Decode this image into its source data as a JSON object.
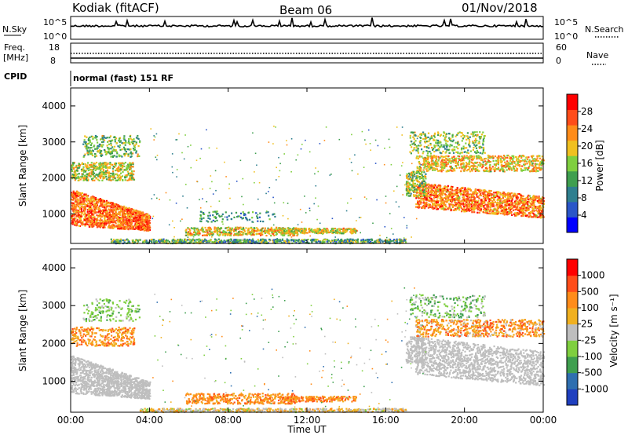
{
  "header": {
    "station": "Kodiak (fitACF)",
    "beam": "Beam 06",
    "date": "01/Nov/2018"
  },
  "strip_panels": {
    "nsky_label": "N.Sky",
    "nsearch_label": "N.Search",
    "nsky_ticks": [
      "10^5",
      "10^0"
    ],
    "nsky_right_ticks": [
      "10^5",
      "10^0"
    ],
    "freq_label_1": "Freq.",
    "freq_label_2": "[MHz]",
    "freq_ticks": [
      "18",
      "8"
    ],
    "nave_label": "Nave",
    "nave_ticks": [
      "60",
      "0"
    ],
    "cpid_label": "CPID",
    "cpid_text": "normal (fast) 151 RF"
  },
  "chart_data": [
    {
      "type": "heatmap",
      "panel": "power",
      "ylabel": "Slant Range [km]",
      "xlabel": "",
      "ylim": [
        180,
        4500
      ],
      "yticks": [
        1000,
        2000,
        3000,
        4000
      ],
      "xlim": [
        "00:00",
        "24:00"
      ],
      "colorbar": {
        "label": "Power [dB]",
        "ticks": [
          "28",
          "24",
          "20",
          "16",
          "12",
          "8",
          "4"
        ],
        "colors": [
          "#0000ff",
          "#2a56c8",
          "#2f7f8f",
          "#3f9f4f",
          "#7fcf3f",
          "#f0c020",
          "#ff8c1a",
          "#ff4d1a",
          "#ff0000"
        ]
      }
    },
    {
      "type": "heatmap",
      "panel": "velocity",
      "ylabel": "Slant Range [km]",
      "xlabel": "Time UT",
      "ylim": [
        180,
        4500
      ],
      "yticks": [
        1000,
        2000,
        3000,
        4000
      ],
      "xlim": [
        "00:00",
        "24:00"
      ],
      "xticks": [
        "00:00",
        "04:00",
        "08:00",
        "12:00",
        "16:00",
        "20:00",
        "00:00"
      ],
      "colorbar": {
        "label": "Velocity [m s⁻¹]",
        "ticks": [
          "1000",
          "500",
          "100",
          "25",
          "-25",
          "-100",
          "-500",
          "-1000"
        ],
        "colors": [
          "#1f3fbf",
          "#2f6fb0",
          "#3f9f4f",
          "#7fcf3f",
          "#bebebe",
          "#f0b020",
          "#ff8c1a",
          "#ff4d1a",
          "#ff0000"
        ]
      }
    }
  ]
}
